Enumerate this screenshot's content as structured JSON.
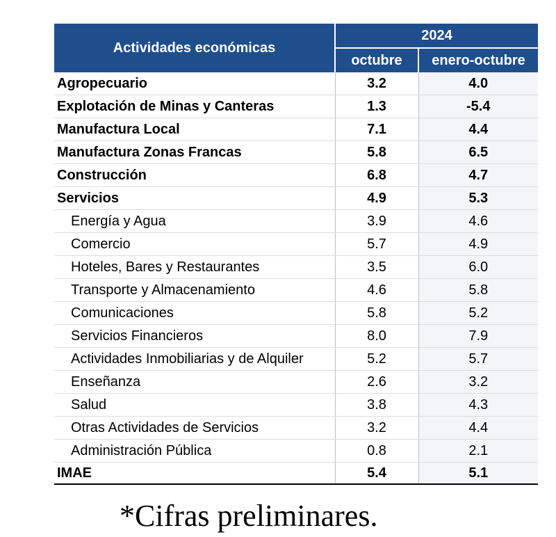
{
  "header": {
    "activities_label": "Actividades económicas",
    "year": "2024",
    "col_october": "octubre",
    "col_jan_oct": "enero-octubre"
  },
  "rows": [
    {
      "label": "Agropecuario",
      "october": "3.2",
      "jan_oct": "4.0",
      "level": "main"
    },
    {
      "label": "Explotación de Minas y Canteras",
      "october": "1.3",
      "jan_oct": "-5.4",
      "level": "main"
    },
    {
      "label": "Manufactura Local",
      "october": "7.1",
      "jan_oct": "4.4",
      "level": "main"
    },
    {
      "label": "Manufactura Zonas Francas",
      "october": "5.8",
      "jan_oct": "6.5",
      "level": "main"
    },
    {
      "label": "Construcción",
      "october": "6.8",
      "jan_oct": "4.7",
      "level": "main"
    },
    {
      "label": "Servicios",
      "october": "4.9",
      "jan_oct": "5.3",
      "level": "main"
    },
    {
      "label": "Energía y Agua",
      "october": "3.9",
      "jan_oct": "4.6",
      "level": "sub"
    },
    {
      "label": "Comercio",
      "october": "5.7",
      "jan_oct": "4.9",
      "level": "sub"
    },
    {
      "label": "Hoteles, Bares y Restaurantes",
      "october": "3.5",
      "jan_oct": "6.0",
      "level": "sub"
    },
    {
      "label": "Transporte y Almacenamiento",
      "october": "4.6",
      "jan_oct": "5.8",
      "level": "sub"
    },
    {
      "label": "Comunicaciones",
      "october": "5.8",
      "jan_oct": "5.2",
      "level": "sub"
    },
    {
      "label": "Servicios Financieros",
      "october": "8.0",
      "jan_oct": "7.9",
      "level": "sub"
    },
    {
      "label": "Actividades Inmobiliarias y de Alquiler",
      "october": "5.2",
      "jan_oct": "5.7",
      "level": "sub"
    },
    {
      "label": "Enseñanza",
      "october": "2.6",
      "jan_oct": "3.2",
      "level": "sub"
    },
    {
      "label": "Salud",
      "october": "3.8",
      "jan_oct": "4.3",
      "level": "sub"
    },
    {
      "label": "Otras Actividades de Servicios",
      "october": "3.2",
      "jan_oct": "4.4",
      "level": "sub"
    },
    {
      "label": "Administración Pública",
      "october": "0.8",
      "jan_oct": "2.1",
      "level": "sub"
    },
    {
      "label": "IMAE",
      "october": "5.4",
      "jan_oct": "5.1",
      "level": "total"
    }
  ],
  "footnote": "*Cifras preliminares."
}
